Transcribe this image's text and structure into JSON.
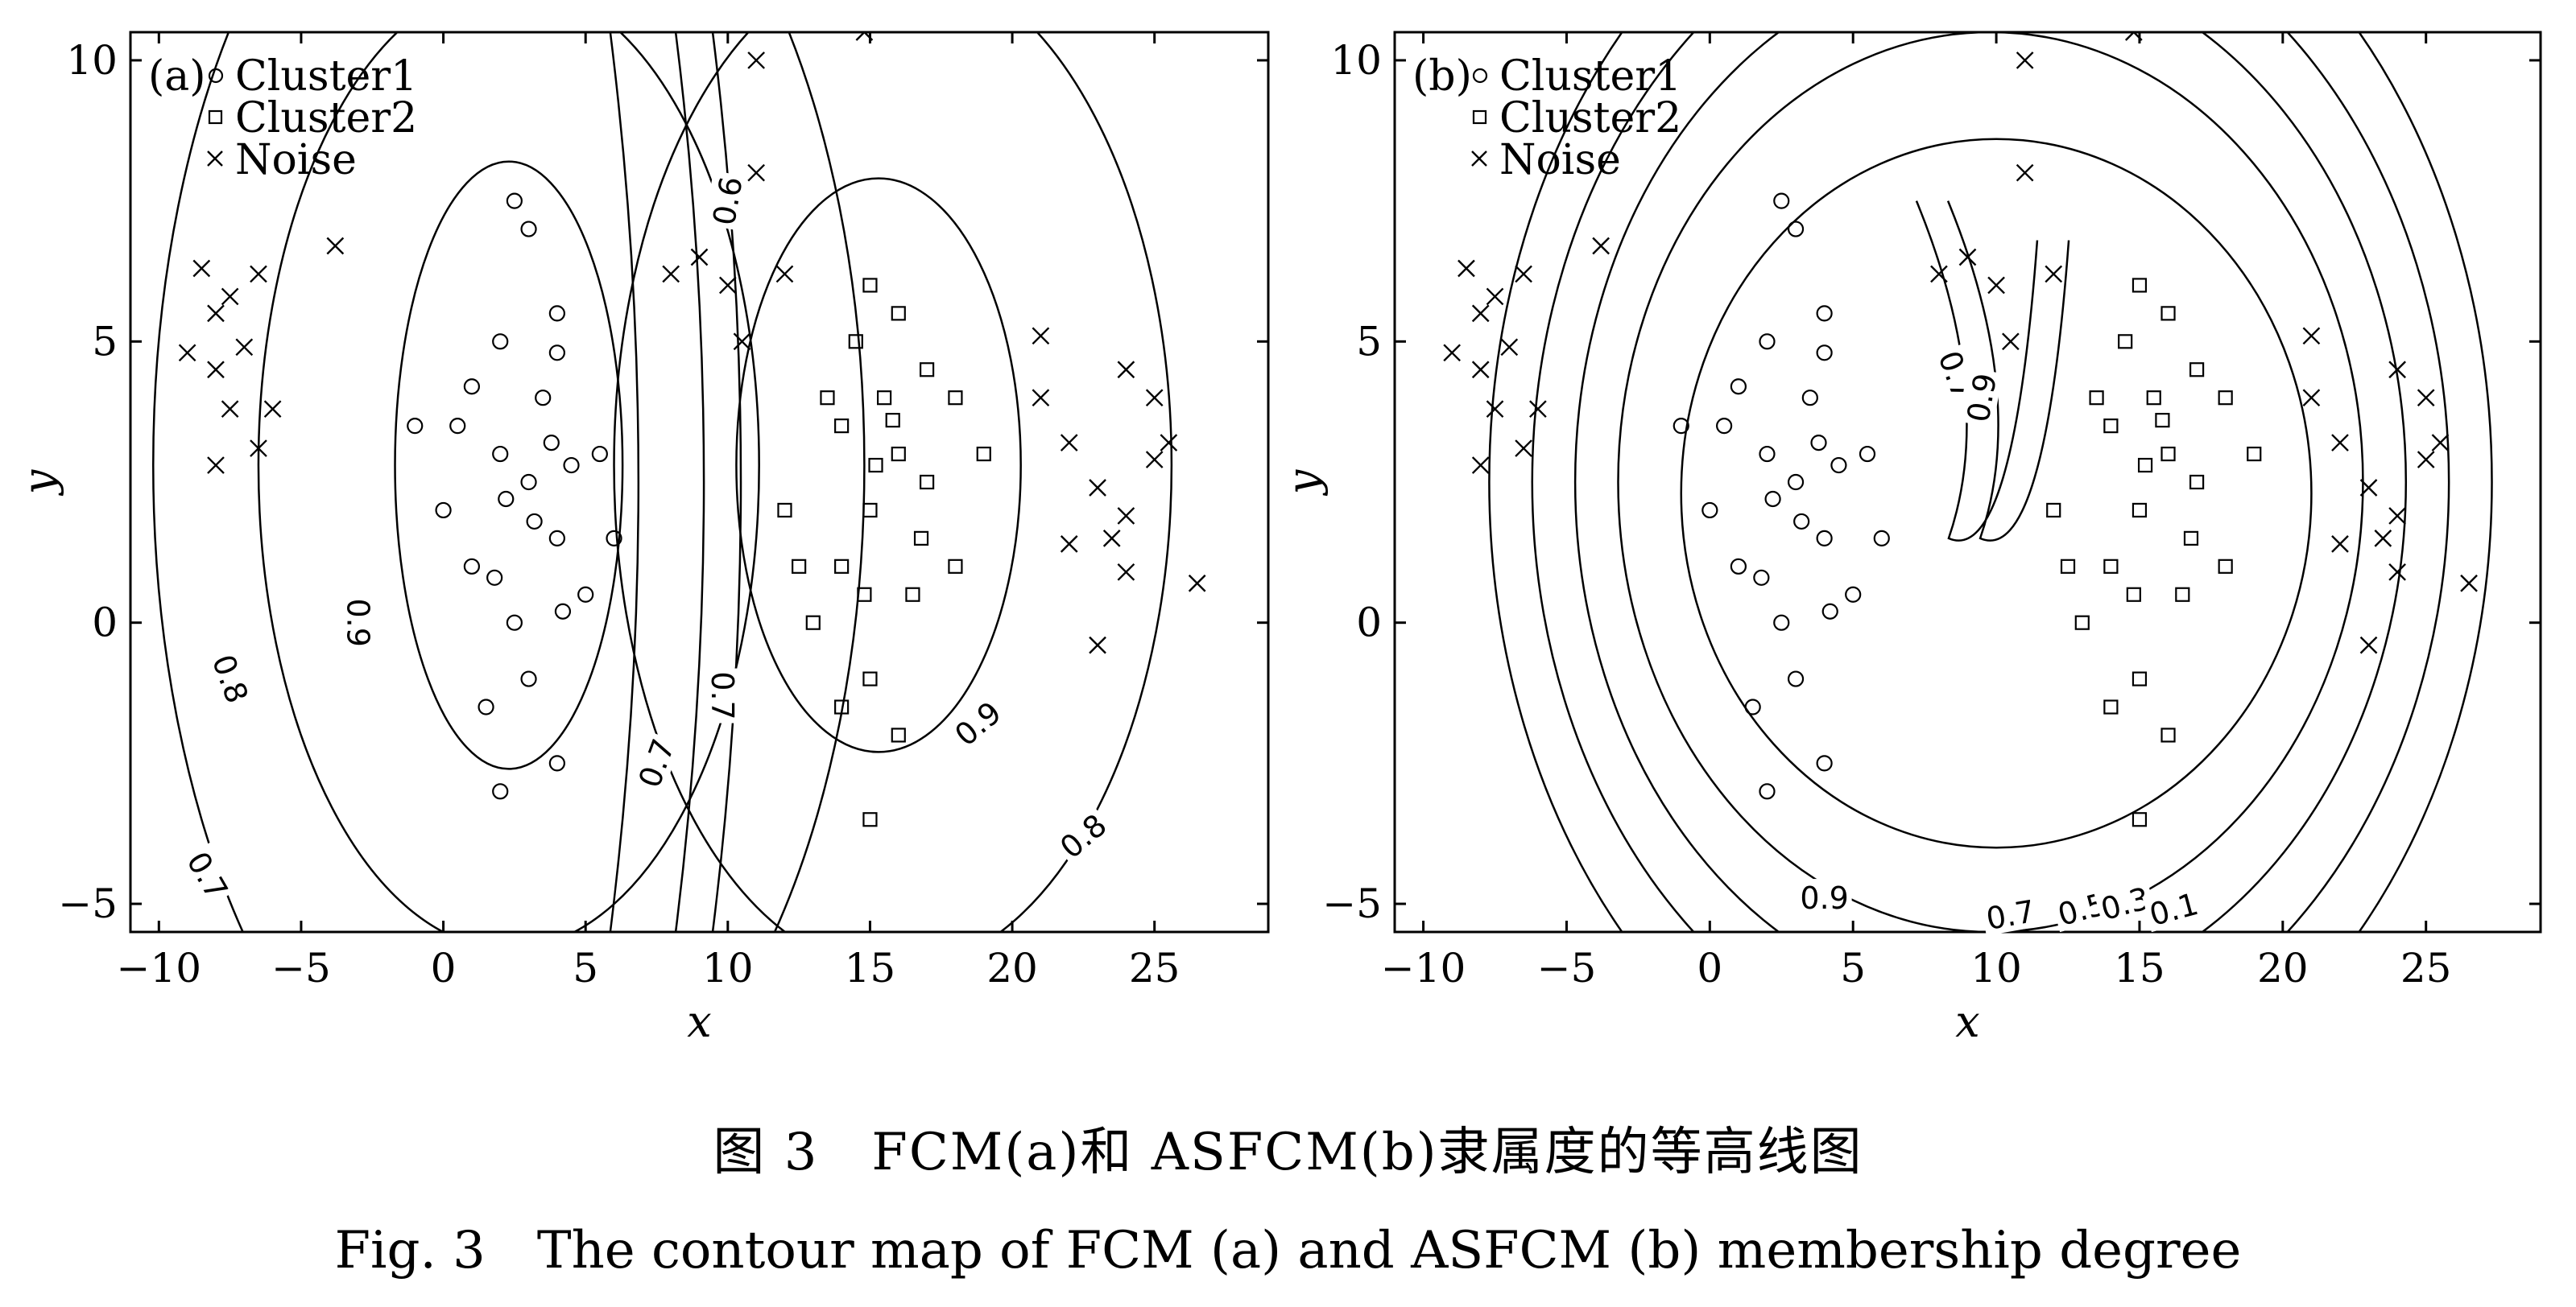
{
  "chart_data": [
    {
      "type": "scatter",
      "panel_label": "(a)",
      "xlabel": "x",
      "ylabel": "y",
      "xlim": [
        -11,
        29
      ],
      "ylim": [
        -5.5,
        10.5
      ],
      "x_ticks": [
        -10,
        -5,
        0,
        5,
        10,
        15,
        20,
        25
      ],
      "y_ticks": [
        -5,
        0,
        5,
        10
      ],
      "tick_labels_x": [
        "−10",
        "−5",
        "0",
        "5",
        "10",
        "15",
        "20",
        "25"
      ],
      "tick_labels_y": [
        "−5",
        "0",
        "5",
        "10"
      ],
      "legend": [
        "Cluster1",
        "Cluster2",
        "Noise"
      ],
      "legend_position": "top-left",
      "series": [
        {
          "name": "Cluster1",
          "marker": "circle",
          "points": [
            [
              3,
              2.5
            ],
            [
              2,
              3
            ],
            [
              4,
              1.5
            ],
            [
              1,
              1
            ],
            [
              3.5,
              4
            ],
            [
              2.5,
              0
            ],
            [
              4.5,
              2.8
            ],
            [
              0.5,
              3.5
            ],
            [
              5,
              0.5
            ],
            [
              3,
              -1
            ],
            [
              2,
              5
            ],
            [
              4,
              4.8
            ],
            [
              1.5,
              -1.5
            ],
            [
              6,
              1.5
            ],
            [
              0,
              2
            ],
            [
              3,
              7
            ],
            [
              2.5,
              7.5
            ],
            [
              4,
              5.5
            ],
            [
              -1,
              3.5
            ],
            [
              5.5,
              3
            ],
            [
              2,
              -3
            ],
            [
              4,
              -2.5
            ],
            [
              1,
              4.2
            ],
            [
              3.2,
              1.8
            ],
            [
              2.2,
              2.2
            ],
            [
              3.8,
              3.2
            ],
            [
              1.8,
              0.8
            ],
            [
              4.2,
              0.2
            ]
          ]
        },
        {
          "name": "Cluster2",
          "marker": "square",
          "points": [
            [
              15,
              2
            ],
            [
              16,
              3
            ],
            [
              14,
              1
            ],
            [
              17,
              2.5
            ],
            [
              15.5,
              4
            ],
            [
              13,
              0
            ],
            [
              16.5,
              0.5
            ],
            [
              14.5,
              5
            ],
            [
              18,
              1
            ],
            [
              15,
              -1
            ],
            [
              12,
              2
            ],
            [
              17,
              4.5
            ],
            [
              14,
              3.5
            ],
            [
              16,
              -2
            ],
            [
              13.5,
              4
            ],
            [
              19,
              3
            ],
            [
              15,
              6
            ],
            [
              16,
              5.5
            ],
            [
              12.5,
              1
            ],
            [
              18,
              4
            ],
            [
              15,
              -3.5
            ],
            [
              14,
              -1.5
            ],
            [
              16.8,
              1.5
            ],
            [
              15.2,
              2.8
            ],
            [
              14.8,
              0.5
            ],
            [
              15.8,
              3.6
            ]
          ]
        },
        {
          "name": "Noise",
          "marker": "cross",
          "points": [
            [
              -8.5,
              6.3
            ],
            [
              -8,
              5.5
            ],
            [
              -7.5,
              5.8
            ],
            [
              -9,
              4.8
            ],
            [
              -8,
              4.5
            ],
            [
              -7,
              4.9
            ],
            [
              -6.5,
              6.2
            ],
            [
              -6,
              3.8
            ],
            [
              -7.5,
              3.8
            ],
            [
              -8,
              2.8
            ],
            [
              -6.5,
              3.1
            ],
            [
              -3.8,
              6.7
            ],
            [
              8,
              6.2
            ],
            [
              9,
              6.5
            ],
            [
              10,
              6
            ],
            [
              11,
              8
            ],
            [
              11,
              10
            ],
            [
              14.8,
              10.5
            ],
            [
              10.5,
              5
            ],
            [
              12,
              6.2
            ],
            [
              21,
              5.1
            ],
            [
              21,
              4
            ],
            [
              22,
              3.2
            ],
            [
              23,
              2.4
            ],
            [
              23.5,
              1.5
            ],
            [
              24,
              1.9
            ],
            [
              25,
              2.9
            ],
            [
              25.5,
              3.2
            ],
            [
              26.5,
              0.7
            ],
            [
              22,
              1.4
            ],
            [
              24,
              0.9
            ],
            [
              25,
              4
            ],
            [
              24,
              4.5
            ],
            [
              23,
              -0.4
            ]
          ]
        }
      ],
      "contours": [
        {
          "level": 0.9,
          "label": "0.9"
        },
        {
          "level": 0.8,
          "label": "0.8"
        },
        {
          "level": 0.7,
          "label": "0.7"
        },
        {
          "level": 0.6,
          "label": "0.6"
        }
      ]
    },
    {
      "type": "scatter",
      "panel_label": "(b)",
      "xlabel": "x",
      "ylabel": "y",
      "xlim": [
        -11,
        29
      ],
      "ylim": [
        -5.5,
        10.5
      ],
      "x_ticks": [
        -10,
        -5,
        0,
        5,
        10,
        15,
        20,
        25
      ],
      "y_ticks": [
        -5,
        0,
        5,
        10
      ],
      "tick_labels_x": [
        "−10",
        "−5",
        "0",
        "5",
        "10",
        "15",
        "20",
        "25"
      ],
      "tick_labels_y": [
        "−5",
        "0",
        "5",
        "10"
      ],
      "legend": [
        "Cluster1",
        "Cluster2",
        "Noise"
      ],
      "legend_position": "top-left",
      "series": [
        {
          "name": "Cluster1",
          "marker": "circle",
          "points": [
            [
              3,
              2.5
            ],
            [
              2,
              3
            ],
            [
              4,
              1.5
            ],
            [
              1,
              1
            ],
            [
              3.5,
              4
            ],
            [
              2.5,
              0
            ],
            [
              4.5,
              2.8
            ],
            [
              0.5,
              3.5
            ],
            [
              5,
              0.5
            ],
            [
              3,
              -1
            ],
            [
              2,
              5
            ],
            [
              4,
              4.8
            ],
            [
              1.5,
              -1.5
            ],
            [
              6,
              1.5
            ],
            [
              0,
              2
            ],
            [
              3,
              7
            ],
            [
              2.5,
              7.5
            ],
            [
              4,
              5.5
            ],
            [
              -1,
              3.5
            ],
            [
              5.5,
              3
            ],
            [
              2,
              -3
            ],
            [
              4,
              -2.5
            ],
            [
              1,
              4.2
            ],
            [
              3.2,
              1.8
            ],
            [
              2.2,
              2.2
            ],
            [
              3.8,
              3.2
            ],
            [
              1.8,
              0.8
            ],
            [
              4.2,
              0.2
            ]
          ]
        },
        {
          "name": "Cluster2",
          "marker": "square",
          "points": [
            [
              15,
              2
            ],
            [
              16,
              3
            ],
            [
              14,
              1
            ],
            [
              17,
              2.5
            ],
            [
              15.5,
              4
            ],
            [
              13,
              0
            ],
            [
              16.5,
              0.5
            ],
            [
              14.5,
              5
            ],
            [
              18,
              1
            ],
            [
              15,
              -1
            ],
            [
              12,
              2
            ],
            [
              17,
              4.5
            ],
            [
              14,
              3.5
            ],
            [
              16,
              -2
            ],
            [
              13.5,
              4
            ],
            [
              19,
              3
            ],
            [
              15,
              6
            ],
            [
              16,
              5.5
            ],
            [
              12.5,
              1
            ],
            [
              18,
              4
            ],
            [
              15,
              -3.5
            ],
            [
              14,
              -1.5
            ],
            [
              16.8,
              1.5
            ],
            [
              15.2,
              2.8
            ],
            [
              14.8,
              0.5
            ],
            [
              15.8,
              3.6
            ]
          ]
        },
        {
          "name": "Noise",
          "marker": "cross",
          "points": [
            [
              -8.5,
              6.3
            ],
            [
              -8,
              5.5
            ],
            [
              -7.5,
              5.8
            ],
            [
              -9,
              4.8
            ],
            [
              -8,
              4.5
            ],
            [
              -7,
              4.9
            ],
            [
              -6.5,
              6.2
            ],
            [
              -6,
              3.8
            ],
            [
              -7.5,
              3.8
            ],
            [
              -8,
              2.8
            ],
            [
              -6.5,
              3.1
            ],
            [
              -3.8,
              6.7
            ],
            [
              8,
              6.2
            ],
            [
              9,
              6.5
            ],
            [
              10,
              6
            ],
            [
              11,
              8
            ],
            [
              11,
              10
            ],
            [
              14.8,
              10.5
            ],
            [
              10.5,
              5
            ],
            [
              12,
              6.2
            ],
            [
              21,
              5.1
            ],
            [
              21,
              4
            ],
            [
              22,
              3.2
            ],
            [
              23,
              2.4
            ],
            [
              23.5,
              1.5
            ],
            [
              24,
              1.9
            ],
            [
              25,
              2.9
            ],
            [
              25.5,
              3.2
            ],
            [
              26.5,
              0.7
            ],
            [
              22,
              1.4
            ],
            [
              24,
              0.9
            ],
            [
              25,
              4
            ],
            [
              24,
              4.5
            ],
            [
              23,
              -0.4
            ]
          ]
        }
      ],
      "contours": [
        {
          "level": 0.9,
          "label": "0.9"
        },
        {
          "level": 0.7,
          "label": "0.7"
        },
        {
          "level": 0.5,
          "label": "0.5"
        },
        {
          "level": 0.3,
          "label": "0.3"
        },
        {
          "level": 0.1,
          "label": "0.1"
        }
      ]
    }
  ],
  "caption": {
    "cn": "图 3　FCM(a)和 ASFCM(b)隶属度的等高线图",
    "en": "Fig. 3　The contour map of FCM (a) and ASFCM (b) membership degree"
  }
}
